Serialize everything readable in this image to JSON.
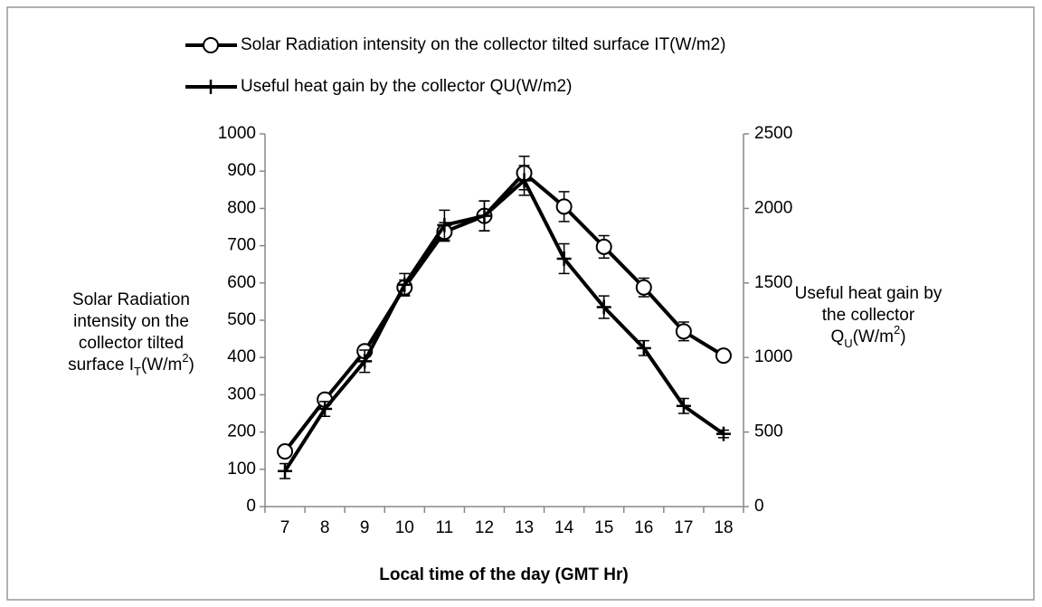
{
  "chart_data": {
    "type": "line",
    "legend": "top",
    "xlabel": "Local time of the day (GMT Hr)",
    "ylabel": [
      "Solar Radiation",
      "intensity on the",
      "collector tilted",
      [
        "surface I",
        "T",
        "(W/m",
        "2",
        ")"
      ]
    ],
    "y2label": [
      "Useful heat gain by",
      "the collector",
      [
        "Q",
        "U",
        "(W/m",
        "2",
        ")"
      ]
    ],
    "categories": [
      "7",
      "8",
      "9",
      "10",
      "11",
      "12",
      "13",
      "14",
      "15",
      "16",
      "17",
      "18"
    ],
    "ylim": [
      0,
      1000
    ],
    "yticks": [
      0,
      100,
      200,
      300,
      400,
      500,
      600,
      700,
      800,
      900,
      1000
    ],
    "y2lim": [
      0,
      2500
    ],
    "y2ticks": [
      0,
      500,
      1000,
      1500,
      2000,
      2500
    ],
    "series": [
      {
        "name": "Solar Radiation intensity on the collector tilted surface IT(W/m2)",
        "color": "#000000",
        "marker": "circle",
        "values": [
          148,
          287,
          417,
          588,
          737,
          780,
          895,
          805,
          697,
          588,
          470,
          405
        ],
        "errors": [
          10,
          10,
          15,
          20,
          25,
          40,
          45,
          40,
          30,
          25,
          25,
          10
        ]
      },
      {
        "name": "Useful heat gain by the collector QU(W/m2)",
        "color": "#000000",
        "marker": "plus",
        "axis": "y2",
        "values": [
          238,
          655,
          975,
          1488,
          1888,
          1950,
          2188,
          1663,
          1338,
          1063,
          675,
          488
        ],
        "errors": [
          50,
          50,
          75,
          75,
          100,
          100,
          100,
          100,
          75,
          50,
          50,
          25
        ]
      }
    ]
  }
}
